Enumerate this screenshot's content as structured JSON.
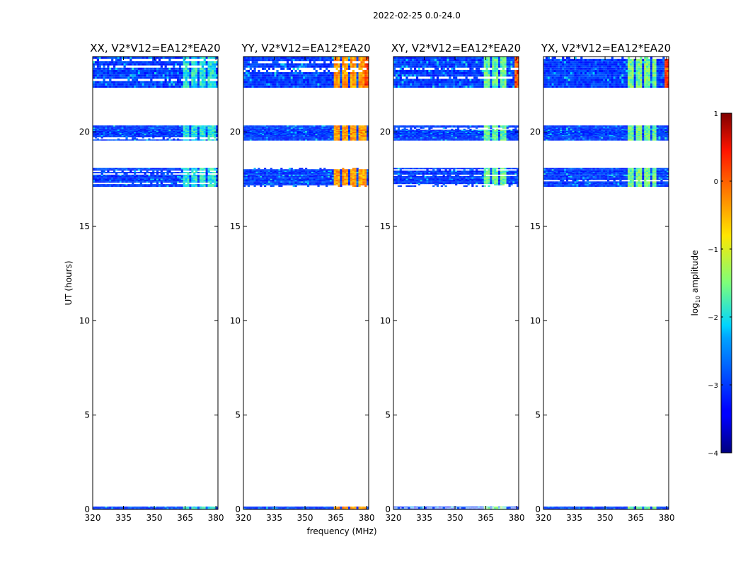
{
  "figure_title": "2022-02-25 0.0-24.0",
  "chart_data": {
    "type": "heatmap",
    "shared": {
      "xlabel": "frequency (MHz)",
      "ylabel": "UT (hours)",
      "xlim": [
        320,
        381
      ],
      "ylim": [
        0,
        24
      ],
      "xticks": [
        320,
        335,
        350,
        365,
        380
      ],
      "yticks": [
        0,
        5,
        10,
        15,
        20
      ]
    },
    "panels": [
      {
        "title": "XX, V2*V12=EA12*EA20",
        "hot_bands": [
          [
            364,
            379,
            -1.9
          ]
        ],
        "edge_burst": false
      },
      {
        "title": "YY, V2*V12=EA12*EA20",
        "hot_bands": [
          [
            364,
            379,
            -0.3
          ]
        ],
        "edge_burst": true
      },
      {
        "title": "XY, V2*V12=EA12*EA20",
        "hot_bands": [
          [
            364,
            374,
            -1.6
          ]
        ],
        "edge_burst": true
      },
      {
        "title": "YX, V2*V12=EA12*EA20",
        "hot_bands": [
          [
            361,
            374,
            -1.5
          ]
        ],
        "edge_burst": true
      }
    ],
    "time_blocks_hours": [
      [
        0.0,
        0.15
      ],
      [
        17.1,
        18.1
      ],
      [
        19.55,
        20.35
      ],
      [
        22.35,
        24.0
      ]
    ],
    "colorbar": {
      "label": "log10 amplitude",
      "label_main": "log",
      "label_sub": "10",
      "label_rest": " amplitude",
      "range": [
        -4,
        1
      ],
      "ticks": [
        1,
        0,
        -1,
        -2,
        -3,
        -4
      ],
      "tick_labels": [
        "1",
        "0",
        "−1",
        "−2",
        "−3",
        "−4"
      ],
      "colormap": "jet"
    }
  }
}
